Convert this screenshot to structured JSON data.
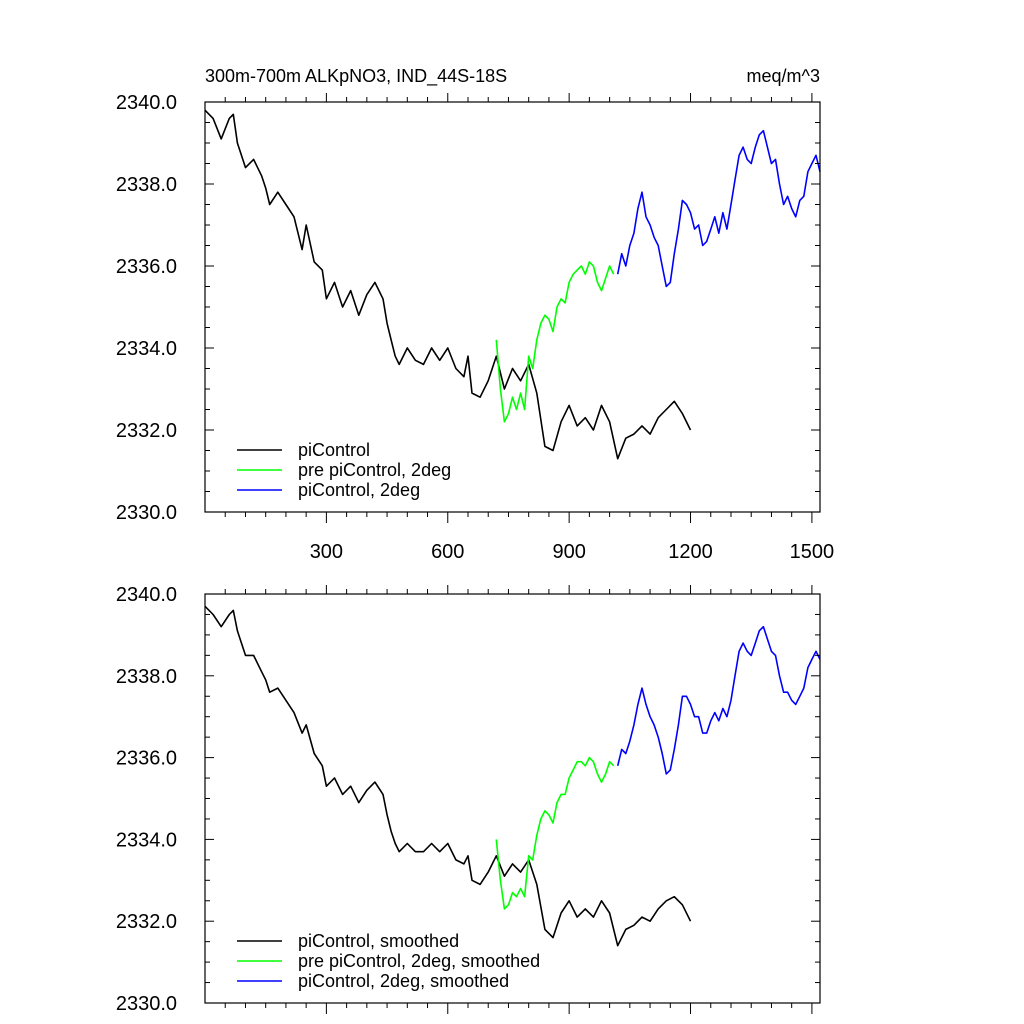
{
  "chart_data": [
    {
      "type": "line",
      "title_left": "300m-700m ALKpNO3, IND_44S-18S",
      "title_right": "meq/m^3",
      "xlim": [
        0,
        1520
      ],
      "ylim": [
        2330,
        2340
      ],
      "x_ticks": [
        300,
        600,
        900,
        1200,
        1500
      ],
      "x_tick_labels": [
        "300",
        "600",
        "900",
        "1200",
        "1500"
      ],
      "y_ticks": [
        2330,
        2332,
        2334,
        2336,
        2338,
        2340
      ],
      "y_tick_labels": [
        "2330.0",
        "2332.0",
        "2334.0",
        "2336.0",
        "2338.0",
        "2340.0"
      ],
      "legend_position": "bottom-left",
      "series": [
        {
          "name": "piControl",
          "color": "#000000",
          "x": [
            0,
            20,
            40,
            60,
            70,
            80,
            100,
            120,
            140,
            150,
            160,
            180,
            200,
            220,
            240,
            250,
            270,
            290,
            300,
            320,
            340,
            360,
            380,
            400,
            420,
            440,
            450,
            460,
            470,
            480,
            500,
            520,
            540,
            560,
            580,
            600,
            620,
            640,
            650,
            660,
            680,
            700,
            720,
            740,
            760,
            780,
            800,
            820,
            840,
            860,
            880,
            900,
            920,
            940,
            960,
            980,
            1000,
            1020,
            1040,
            1060,
            1080,
            1100,
            1120,
            1140,
            1160,
            1180,
            1200
          ],
          "y": [
            2339.8,
            2339.6,
            2339.1,
            2339.6,
            2339.7,
            2339.0,
            2338.4,
            2338.6,
            2338.2,
            2337.9,
            2337.5,
            2337.8,
            2337.5,
            2337.2,
            2336.4,
            2337.0,
            2336.1,
            2335.9,
            2335.2,
            2335.6,
            2335.0,
            2335.4,
            2334.8,
            2335.3,
            2335.6,
            2335.2,
            2334.6,
            2334.2,
            2333.8,
            2333.6,
            2334.0,
            2333.7,
            2333.6,
            2334.0,
            2333.7,
            2334.0,
            2333.5,
            2333.3,
            2333.8,
            2332.9,
            2332.8,
            2333.2,
            2333.8,
            2333.0,
            2333.5,
            2333.2,
            2333.6,
            2332.9,
            2331.6,
            2331.5,
            2332.2,
            2332.6,
            2332.1,
            2332.3,
            2332.0,
            2332.6,
            2332.2,
            2331.3,
            2331.8,
            2331.9,
            2332.1,
            2331.9,
            2332.3,
            2332.5,
            2332.7,
            2332.4,
            2332.0
          ]
        },
        {
          "name": "pre piControl, 2deg",
          "color": "#00ff00",
          "x": [
            720,
            730,
            740,
            750,
            760,
            770,
            780,
            790,
            800,
            810,
            820,
            830,
            840,
            850,
            860,
            870,
            880,
            890,
            900,
            910,
            920,
            930,
            940,
            950,
            960,
            970,
            980,
            990,
            1000,
            1010
          ],
          "y": [
            2334.2,
            2333.0,
            2332.2,
            2332.4,
            2332.8,
            2332.5,
            2332.9,
            2332.5,
            2333.8,
            2333.5,
            2334.2,
            2334.6,
            2334.8,
            2334.7,
            2334.4,
            2335.0,
            2335.2,
            2335.1,
            2335.6,
            2335.8,
            2335.9,
            2336.0,
            2335.8,
            2336.1,
            2336.0,
            2335.6,
            2335.4,
            2335.7,
            2336.0,
            2335.8
          ]
        },
        {
          "name": "piControl, 2deg",
          "color": "#0000ff",
          "x": [
            1020,
            1030,
            1040,
            1050,
            1060,
            1070,
            1080,
            1090,
            1100,
            1110,
            1120,
            1130,
            1140,
            1150,
            1160,
            1170,
            1180,
            1190,
            1200,
            1210,
            1220,
            1230,
            1240,
            1250,
            1260,
            1270,
            1280,
            1290,
            1300,
            1310,
            1320,
            1330,
            1340,
            1350,
            1360,
            1370,
            1380,
            1390,
            1400,
            1410,
            1420,
            1430,
            1440,
            1450,
            1460,
            1470,
            1480,
            1490,
            1500,
            1510,
            1520
          ],
          "y": [
            2335.8,
            2336.3,
            2336.0,
            2336.5,
            2336.8,
            2337.4,
            2337.8,
            2337.2,
            2337.0,
            2336.7,
            2336.5,
            2336.0,
            2335.5,
            2335.6,
            2336.3,
            2336.9,
            2337.6,
            2337.5,
            2337.3,
            2336.9,
            2337.0,
            2336.5,
            2336.6,
            2336.9,
            2337.2,
            2336.8,
            2337.3,
            2336.9,
            2337.5,
            2338.1,
            2338.7,
            2338.9,
            2338.6,
            2338.5,
            2338.9,
            2339.2,
            2339.3,
            2338.9,
            2338.5,
            2338.6,
            2338.0,
            2337.5,
            2337.7,
            2337.4,
            2337.2,
            2337.6,
            2337.7,
            2338.3,
            2338.5,
            2338.7,
            2338.3
          ]
        }
      ]
    },
    {
      "type": "line",
      "xlim": [
        0,
        1520
      ],
      "ylim": [
        2330,
        2340
      ],
      "x_ticks": [
        300,
        600,
        900,
        1200,
        1500
      ],
      "y_ticks": [
        2330,
        2332,
        2334,
        2336,
        2338,
        2340
      ],
      "y_tick_labels": [
        "2330.0",
        "2332.0",
        "2334.0",
        "2336.0",
        "2338.0",
        "2340.0"
      ],
      "legend_position": "bottom-left",
      "series": [
        {
          "name": "piControl, smoothed",
          "color": "#000000",
          "x": [
            0,
            20,
            40,
            60,
            70,
            80,
            100,
            120,
            140,
            150,
            160,
            180,
            200,
            220,
            240,
            250,
            270,
            290,
            300,
            320,
            340,
            360,
            380,
            400,
            420,
            440,
            450,
            460,
            470,
            480,
            500,
            520,
            540,
            560,
            580,
            600,
            620,
            640,
            650,
            660,
            680,
            700,
            720,
            740,
            760,
            780,
            800,
            820,
            840,
            860,
            880,
            900,
            920,
            940,
            960,
            980,
            1000,
            1020,
            1040,
            1060,
            1080,
            1100,
            1120,
            1140,
            1160,
            1180,
            1200
          ],
          "y": [
            2339.7,
            2339.5,
            2339.2,
            2339.5,
            2339.6,
            2339.1,
            2338.5,
            2338.5,
            2338.1,
            2337.9,
            2337.6,
            2337.7,
            2337.4,
            2337.1,
            2336.6,
            2336.8,
            2336.1,
            2335.8,
            2335.3,
            2335.5,
            2335.1,
            2335.3,
            2334.9,
            2335.2,
            2335.4,
            2335.1,
            2334.6,
            2334.2,
            2333.9,
            2333.7,
            2333.9,
            2333.7,
            2333.7,
            2333.9,
            2333.7,
            2333.9,
            2333.5,
            2333.4,
            2333.6,
            2333.0,
            2332.9,
            2333.2,
            2333.6,
            2333.1,
            2333.4,
            2333.2,
            2333.5,
            2332.9,
            2331.8,
            2331.6,
            2332.2,
            2332.5,
            2332.1,
            2332.3,
            2332.1,
            2332.5,
            2332.2,
            2331.4,
            2331.8,
            2331.9,
            2332.1,
            2332.0,
            2332.3,
            2332.5,
            2332.6,
            2332.4,
            2332.0
          ]
        },
        {
          "name": "pre piControl, 2deg, smoothed",
          "color": "#00ff00",
          "x": [
            720,
            730,
            740,
            750,
            760,
            770,
            780,
            790,
            800,
            810,
            820,
            830,
            840,
            850,
            860,
            870,
            880,
            890,
            900,
            910,
            920,
            930,
            940,
            950,
            960,
            970,
            980,
            990,
            1000,
            1010
          ],
          "y": [
            2334.0,
            2333.0,
            2332.3,
            2332.4,
            2332.7,
            2332.6,
            2332.8,
            2332.6,
            2333.6,
            2333.5,
            2334.1,
            2334.5,
            2334.7,
            2334.6,
            2334.4,
            2334.9,
            2335.1,
            2335.1,
            2335.5,
            2335.7,
            2335.9,
            2335.9,
            2335.8,
            2336.0,
            2335.9,
            2335.6,
            2335.4,
            2335.6,
            2335.9,
            2335.8
          ]
        },
        {
          "name": "piControl, 2deg, smoothed",
          "color": "#0000ff",
          "x": [
            1020,
            1030,
            1040,
            1050,
            1060,
            1070,
            1080,
            1090,
            1100,
            1110,
            1120,
            1130,
            1140,
            1150,
            1160,
            1170,
            1180,
            1190,
            1200,
            1210,
            1220,
            1230,
            1240,
            1250,
            1260,
            1270,
            1280,
            1290,
            1300,
            1310,
            1320,
            1330,
            1340,
            1350,
            1360,
            1370,
            1380,
            1390,
            1400,
            1410,
            1420,
            1430,
            1440,
            1450,
            1460,
            1470,
            1480,
            1490,
            1500,
            1510,
            1520
          ],
          "y": [
            2335.8,
            2336.2,
            2336.1,
            2336.4,
            2336.8,
            2337.3,
            2337.7,
            2337.3,
            2337.0,
            2336.8,
            2336.5,
            2336.1,
            2335.6,
            2335.7,
            2336.2,
            2336.8,
            2337.5,
            2337.5,
            2337.3,
            2337.0,
            2337.0,
            2336.6,
            2336.6,
            2336.9,
            2337.1,
            2336.9,
            2337.2,
            2337.0,
            2337.4,
            2338.0,
            2338.6,
            2338.8,
            2338.6,
            2338.5,
            2338.8,
            2339.1,
            2339.2,
            2338.9,
            2338.6,
            2338.5,
            2338.0,
            2337.6,
            2337.6,
            2337.4,
            2337.3,
            2337.5,
            2337.7,
            2338.2,
            2338.4,
            2338.6,
            2338.4
          ]
        }
      ]
    }
  ]
}
